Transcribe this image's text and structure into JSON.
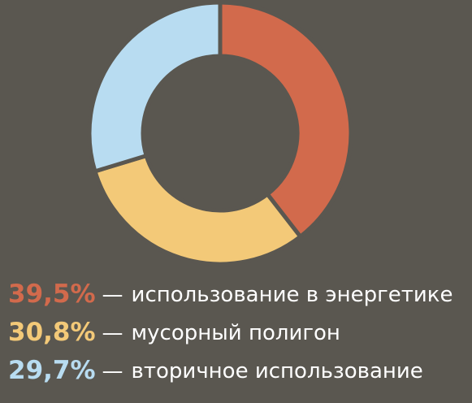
{
  "chart_data": {
    "type": "donut",
    "categories": [
      "использование в энергетике",
      "мусорный полигон",
      "вторичное использование"
    ],
    "values": [
      39.5,
      30.8,
      29.7
    ],
    "value_labels": [
      "39,5%",
      "30,8%",
      "29,7%"
    ],
    "colors": [
      "#d26a4c",
      "#f3c978",
      "#b8dcf1"
    ],
    "legend_separator": "—"
  }
}
